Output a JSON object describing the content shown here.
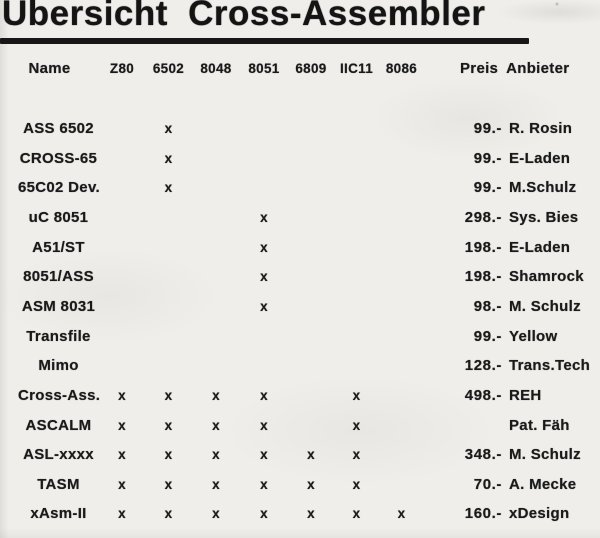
{
  "page": {
    "title": "Übersicht Cross-Assembler"
  },
  "colors": {
    "ink": "#1a1a1a",
    "paper": "#efeeea"
  },
  "table": {
    "name_header": "Name",
    "cpu_columns": [
      "Z80",
      "6502",
      "8048",
      "8051",
      "6809",
      "IIC11",
      "8086"
    ],
    "price_anbieter_header": "Preis Anbieter",
    "check_glyph": "x",
    "rows": [
      {
        "name": "ASS 6502",
        "checks": [
          false,
          true,
          false,
          false,
          false,
          false,
          false
        ],
        "price": "99.-",
        "anbieter": "R. Rosin"
      },
      {
        "name": "CROSS-65",
        "checks": [
          false,
          true,
          false,
          false,
          false,
          false,
          false
        ],
        "price": "99.-",
        "anbieter": "E-Laden"
      },
      {
        "name": "65C02 Dev.",
        "checks": [
          false,
          true,
          false,
          false,
          false,
          false,
          false
        ],
        "price": "99.-",
        "anbieter": "M.Schulz"
      },
      {
        "name": "uC 8051",
        "checks": [
          false,
          false,
          false,
          true,
          false,
          false,
          false
        ],
        "price": "298.-",
        "anbieter": "Sys. Bies"
      },
      {
        "name": "A51/ST",
        "checks": [
          false,
          false,
          false,
          true,
          false,
          false,
          false
        ],
        "price": "198.-",
        "anbieter": "E-Laden"
      },
      {
        "name": "8051/ASS",
        "checks": [
          false,
          false,
          false,
          true,
          false,
          false,
          false
        ],
        "price": "198.-",
        "anbieter": "Shamrock"
      },
      {
        "name": "ASM 8031",
        "checks": [
          false,
          false,
          false,
          true,
          false,
          false,
          false
        ],
        "price": "98.-",
        "anbieter": "M. Schulz"
      },
      {
        "name": "Transfile",
        "checks": [
          false,
          false,
          false,
          false,
          false,
          false,
          false
        ],
        "price": "99.-",
        "anbieter": "Yellow"
      },
      {
        "name": "Mimo",
        "checks": [
          false,
          false,
          false,
          false,
          false,
          false,
          false
        ],
        "price": "128.-",
        "anbieter": "Trans.Tech"
      },
      {
        "name": "Cross-Ass.",
        "checks": [
          true,
          true,
          true,
          true,
          false,
          true,
          false
        ],
        "price": "498.-",
        "anbieter": "REH"
      },
      {
        "name": "ASCALM",
        "checks": [
          true,
          true,
          true,
          true,
          false,
          true,
          false
        ],
        "price": "",
        "anbieter": "Pat. Fäh"
      },
      {
        "name": "ASL-xxxx",
        "checks": [
          true,
          true,
          true,
          true,
          true,
          true,
          false
        ],
        "price": "348.-",
        "anbieter": "M. Schulz"
      },
      {
        "name": "TASM",
        "checks": [
          true,
          true,
          true,
          true,
          true,
          true,
          false
        ],
        "price": "70.-",
        "anbieter": "A. Mecke"
      },
      {
        "name": "xAsm-II",
        "checks": [
          true,
          true,
          true,
          true,
          true,
          true,
          true
        ],
        "price": "160.-",
        "anbieter": "xDesign"
      }
    ]
  }
}
